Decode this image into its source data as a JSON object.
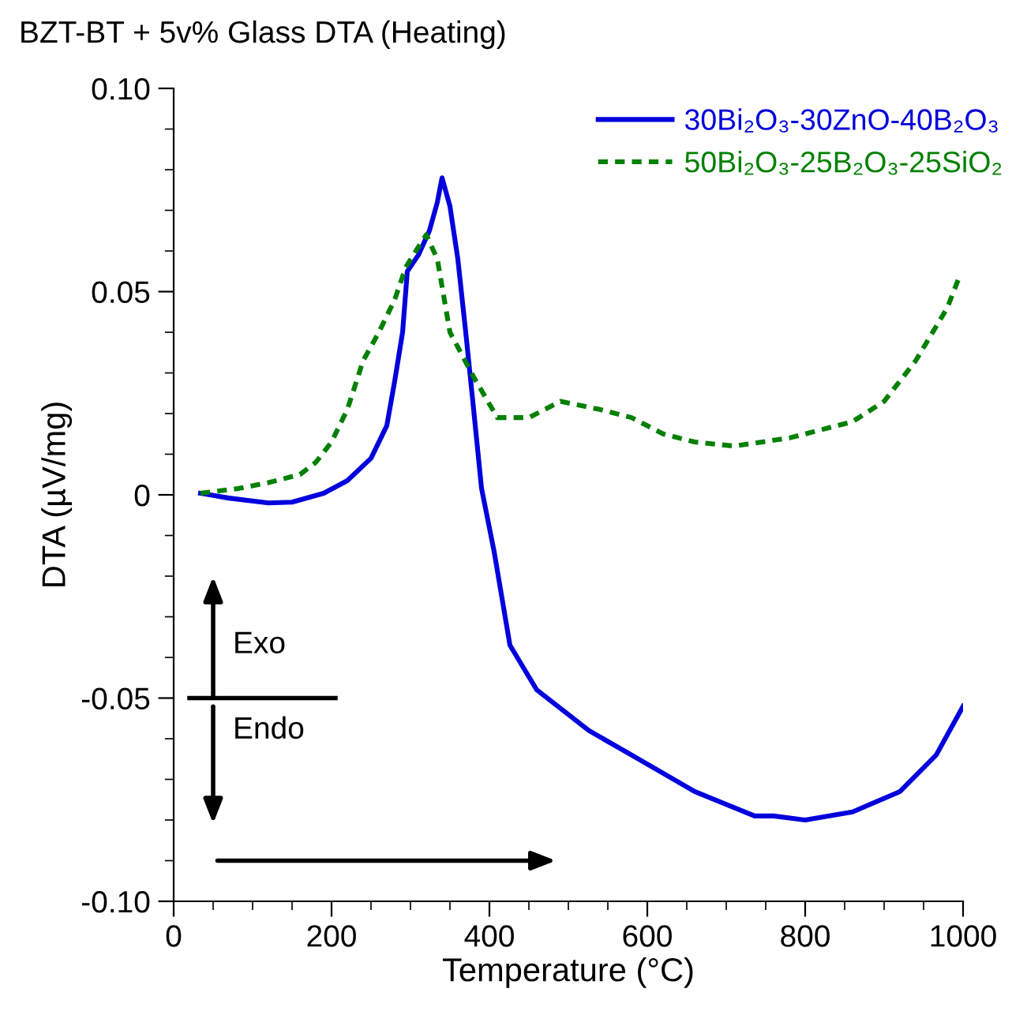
{
  "chart_data": {
    "type": "line",
    "title": "BZT-BT + 5v% Glass DTA (Heating)",
    "xlabel": "Temperature (°C)",
    "ylabel": "DTA (µV/mg)",
    "xlim": [
      0,
      1000
    ],
    "xticks": [
      0,
      200,
      400,
      600,
      800,
      1000
    ],
    "ylim": [
      -0.1,
      0.1
    ],
    "yticks": [
      {
        "value": -0.1,
        "label": "-0.10"
      },
      {
        "value": -0.05,
        "label": "-0.05"
      },
      {
        "value": 0,
        "label": "0"
      },
      {
        "value": 0.05,
        "label": "0.05"
      },
      {
        "value": 0.1,
        "label": "0.10"
      }
    ],
    "legend": "top right",
    "grid": false,
    "annotations": [
      "Exo",
      "Endo"
    ],
    "series": [
      {
        "name": "30Bi₂O₃-30ZnO-40B₂O₃",
        "color": "#0000dd",
        "line_style": "solid",
        "x": [
          34,
          70,
          120,
          150,
          190,
          220,
          250,
          270,
          280,
          290,
          296,
          310,
          324,
          334,
          340,
          350,
          360,
          370,
          380,
          390,
          406,
          426,
          460,
          526,
          580,
          660,
          736,
          760,
          800,
          860,
          920,
          966,
          1000
        ],
        "values": [
          0.0004,
          -0.0008,
          -0.002,
          -0.0018,
          0.0004,
          0.0035,
          0.009,
          0.017,
          0.028,
          0.04,
          0.055,
          0.059,
          0.065,
          0.072,
          0.078,
          0.071,
          0.058,
          0.04,
          0.021,
          0.0016,
          -0.014,
          -0.037,
          -0.048,
          -0.058,
          -0.064,
          -0.073,
          -0.079,
          -0.079,
          -0.08,
          -0.078,
          -0.073,
          -0.064,
          -0.052
        ]
      },
      {
        "name": "50Bi₂O₃-25B₂O₃-25SiO₂",
        "color": "#008000",
        "line_style": "dotted",
        "x": [
          34,
          80,
          120,
          160,
          180,
          200,
          220,
          240,
          260,
          280,
          294,
          310,
          320,
          334,
          350,
          380,
          410,
          450,
          490,
          540,
          580,
          620,
          660,
          710,
          780,
          860,
          900,
          940,
          980,
          996
        ],
        "values": [
          0.0004,
          0.0015,
          0.003,
          0.005,
          0.008,
          0.013,
          0.021,
          0.033,
          0.04,
          0.048,
          0.056,
          0.061,
          0.064,
          0.058,
          0.04,
          0.029,
          0.019,
          0.019,
          0.023,
          0.021,
          0.019,
          0.015,
          0.013,
          0.012,
          0.014,
          0.018,
          0.023,
          0.033,
          0.046,
          0.054
        ]
      }
    ]
  }
}
